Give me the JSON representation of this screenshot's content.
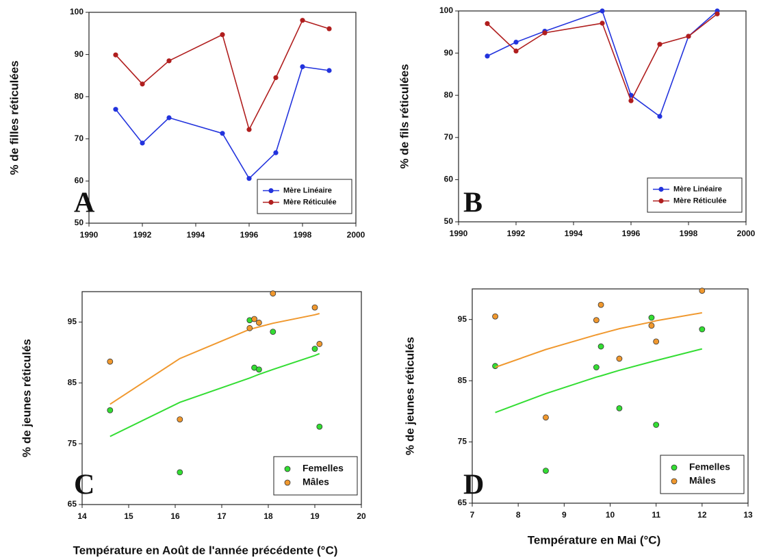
{
  "chart_data": [
    {
      "type": "line",
      "panel": "A",
      "y_label": "% de filles réticulées",
      "x": [
        1991,
        1992,
        1993,
        1995,
        1996,
        1997,
        1998,
        1999
      ],
      "series": [
        {
          "name": "Mère Linéaire",
          "color": "#2233dd",
          "values": [
            77,
            69,
            75,
            71.3,
            60.6,
            66.7,
            87.1,
            86.2
          ]
        },
        {
          "name": "Mère Réticulée",
          "color": "#b01e1e",
          "values": [
            89.9,
            83,
            88.5,
            94.7,
            72.2,
            84.5,
            98.1,
            96.1
          ]
        }
      ],
      "xlim": [
        1990,
        2000
      ],
      "xticks": [
        1990,
        1992,
        1994,
        1996,
        1998,
        2000
      ],
      "ylim": [
        50,
        100
      ],
      "yticks": [
        50,
        60,
        70,
        80,
        90,
        100
      ],
      "grid": false,
      "legend": "lower right"
    },
    {
      "type": "line",
      "panel": "B",
      "y_label": "% de fils réticulées",
      "x": [
        1991,
        1992,
        1993,
        1995,
        1996,
        1997,
        1998,
        1999
      ],
      "series": [
        {
          "name": "Mère Linéaire",
          "color": "#2233dd",
          "values": [
            89.3,
            92.6,
            95.2,
            100,
            80,
            75,
            94,
            100
          ]
        },
        {
          "name": "Mère Réticulée",
          "color": "#b01e1e",
          "values": [
            97,
            90.5,
            94.8,
            97.1,
            78.7,
            92.1,
            94,
            99.3
          ]
        }
      ],
      "xlim": [
        1990,
        2000
      ],
      "xticks": [
        1990,
        1992,
        1994,
        1996,
        1998,
        2000
      ],
      "ylim": [
        50,
        100
      ],
      "yticks": [
        50,
        60,
        70,
        80,
        90,
        100
      ],
      "grid": false,
      "legend": "lower right"
    },
    {
      "type": "scatter",
      "panel": "C",
      "y_label": "% de jeunes réticulés",
      "x_label": "Température en Août de l'année précédente (°C)",
      "series": [
        {
          "name": "Femelles",
          "color": "#33dd33",
          "x": [
            14.6,
            16.1,
            17.6,
            17.7,
            17.8,
            18.1,
            19.0,
            19.1
          ],
          "values": [
            80.5,
            70.3,
            95.3,
            87.5,
            87.2,
            93.4,
            90.6,
            77.8
          ],
          "fit": [
            76.2,
            81.8,
            85.8,
            86.1,
            86.4,
            87.2,
            89.5,
            89.8
          ]
        },
        {
          "name": "Mâles",
          "color": "#f0982e",
          "x": [
            14.6,
            16.1,
            17.6,
            17.7,
            17.8,
            18.1,
            19.0,
            19.1
          ],
          "values": [
            88.5,
            79.0,
            94.0,
            95.5,
            94.9,
            99.7,
            97.4,
            91.4
          ],
          "fit": [
            81.5,
            89.0,
            93.8,
            94.0,
            94.2,
            94.8,
            96.2,
            96.4
          ]
        }
      ],
      "xlim": [
        14,
        20
      ],
      "xticks": [
        14,
        15,
        16,
        17,
        18,
        19,
        20
      ],
      "ylim": [
        65,
        100
      ],
      "yticks": [
        65,
        75,
        85,
        95
      ],
      "grid": false,
      "legend": "lower right"
    },
    {
      "type": "scatter",
      "panel": "D",
      "y_label": "% de jeunes réticulés",
      "x_label": "Température en Mai (°C)",
      "series": [
        {
          "name": "Femelles",
          "color": "#33dd33",
          "x": [
            7.5,
            8.6,
            9.7,
            9.8,
            10.2,
            10.9,
            11.0,
            12.0
          ],
          "values": [
            87.4,
            70.3,
            87.2,
            90.6,
            80.5,
            95.3,
            77.8,
            93.4
          ],
          "fit": [
            79.8,
            82.9,
            85.6,
            85.8,
            86.7,
            88.1,
            88.3,
            90.2
          ]
        },
        {
          "name": "Mâles",
          "color": "#f0982e",
          "x": [
            7.5,
            8.6,
            9.7,
            9.8,
            10.2,
            10.9,
            11.0,
            12.0
          ],
          "values": [
            95.5,
            79.0,
            94.9,
            97.4,
            88.6,
            94.0,
            91.4,
            99.7
          ],
          "fit": [
            87.2,
            90.1,
            92.5,
            92.7,
            93.5,
            94.6,
            94.8,
            96.1
          ]
        }
      ],
      "xlim": [
        7,
        13
      ],
      "xticks": [
        7,
        8,
        9,
        10,
        11,
        12,
        13
      ],
      "ylim": [
        65,
        100
      ],
      "yticks": [
        65,
        75,
        85,
        95
      ],
      "grid": false,
      "legend": "lower right"
    }
  ]
}
